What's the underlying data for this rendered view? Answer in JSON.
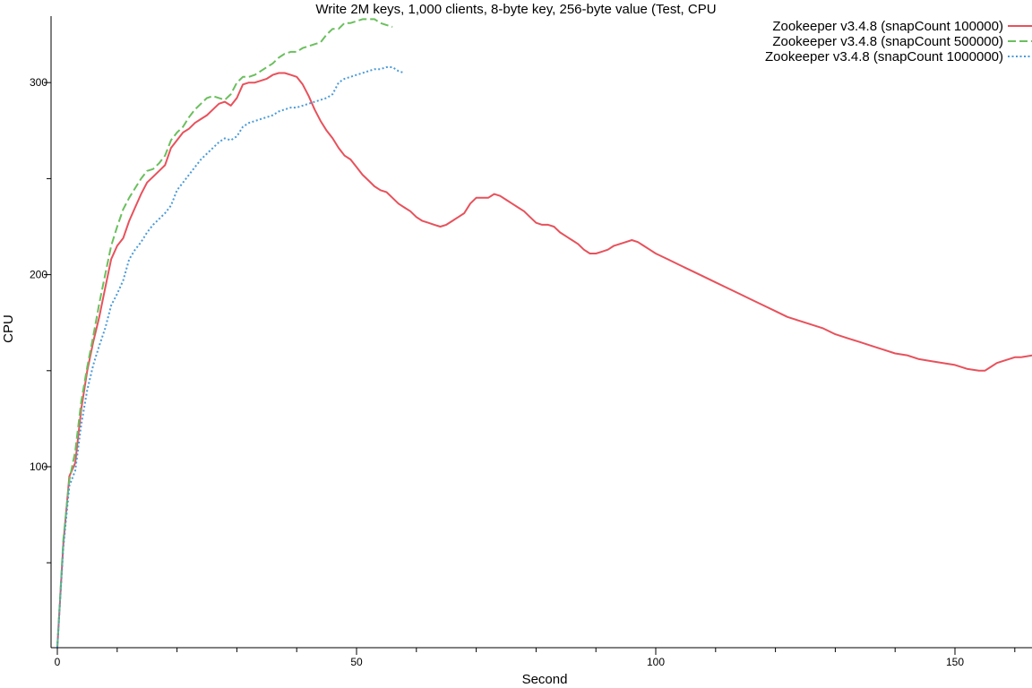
{
  "chart_data": {
    "type": "line",
    "title": "Write 2M keys, 1,000 clients, 8-byte key, 256-byte value (Test, CPU",
    "xlabel": "Second",
    "ylabel": "CPU",
    "xlim": [
      0,
      163
    ],
    "ylim": [
      3,
      330
    ],
    "x_ticks": [
      0,
      50,
      100,
      150
    ],
    "y_ticks": [
      100,
      200,
      300
    ],
    "legend_position": "top-right",
    "grid": false,
    "series": [
      {
        "name": "Zookeeper v3.4.8 (snapCount 100000)",
        "color": "#e8515b",
        "dash": "solid",
        "points": [
          [
            0,
            6
          ],
          [
            1,
            60
          ],
          [
            2,
            95
          ],
          [
            3,
            102
          ],
          [
            4,
            130
          ],
          [
            5,
            150
          ],
          [
            6,
            165
          ],
          [
            7,
            178
          ],
          [
            8,
            193
          ],
          [
            9,
            208
          ],
          [
            10,
            215
          ],
          [
            11,
            219
          ],
          [
            12,
            228
          ],
          [
            13,
            235
          ],
          [
            14,
            242
          ],
          [
            15,
            248
          ],
          [
            16,
            251
          ],
          [
            17,
            254
          ],
          [
            18,
            257
          ],
          [
            19,
            266
          ],
          [
            20,
            270
          ],
          [
            21,
            274
          ],
          [
            22,
            276
          ],
          [
            23,
            279
          ],
          [
            24,
            281
          ],
          [
            25,
            283
          ],
          [
            26,
            286
          ],
          [
            27,
            289
          ],
          [
            28,
            290
          ],
          [
            29,
            288
          ],
          [
            30,
            292
          ],
          [
            31,
            299
          ],
          [
            32,
            300
          ],
          [
            33,
            300
          ],
          [
            34,
            301
          ],
          [
            35,
            302
          ],
          [
            36,
            304
          ],
          [
            37,
            305
          ],
          [
            38,
            305
          ],
          [
            39,
            304
          ],
          [
            40,
            303
          ],
          [
            41,
            299
          ],
          [
            42,
            293
          ],
          [
            43,
            286
          ],
          [
            44,
            280
          ],
          [
            45,
            275
          ],
          [
            46,
            271
          ],
          [
            47,
            266
          ],
          [
            48,
            262
          ],
          [
            49,
            260
          ],
          [
            50,
            256
          ],
          [
            51,
            252
          ],
          [
            52,
            249
          ],
          [
            53,
            246
          ],
          [
            54,
            244
          ],
          [
            55,
            243
          ],
          [
            56,
            240
          ],
          [
            57,
            237
          ],
          [
            58,
            235
          ],
          [
            59,
            233
          ],
          [
            60,
            230
          ],
          [
            61,
            228
          ],
          [
            62,
            227
          ],
          [
            63,
            226
          ],
          [
            64,
            225
          ],
          [
            65,
            226
          ],
          [
            66,
            228
          ],
          [
            67,
            230
          ],
          [
            68,
            232
          ],
          [
            69,
            237
          ],
          [
            70,
            240
          ],
          [
            71,
            240
          ],
          [
            72,
            240
          ],
          [
            73,
            242
          ],
          [
            74,
            241
          ],
          [
            75,
            239
          ],
          [
            76,
            237
          ],
          [
            77,
            235
          ],
          [
            78,
            233
          ],
          [
            79,
            230
          ],
          [
            80,
            227
          ],
          [
            81,
            226
          ],
          [
            82,
            226
          ],
          [
            83,
            225
          ],
          [
            84,
            222
          ],
          [
            85,
            220
          ],
          [
            86,
            218
          ],
          [
            87,
            216
          ],
          [
            88,
            213
          ],
          [
            89,
            211
          ],
          [
            90,
            211
          ],
          [
            91,
            212
          ],
          [
            92,
            213
          ],
          [
            93,
            215
          ],
          [
            94,
            216
          ],
          [
            95,
            217
          ],
          [
            96,
            218
          ],
          [
            97,
            217
          ],
          [
            98,
            215
          ],
          [
            99,
            213
          ],
          [
            100,
            211
          ],
          [
            102,
            208
          ],
          [
            104,
            205
          ],
          [
            106,
            202
          ],
          [
            108,
            199
          ],
          [
            110,
            196
          ],
          [
            112,
            193
          ],
          [
            114,
            190
          ],
          [
            116,
            187
          ],
          [
            118,
            184
          ],
          [
            120,
            181
          ],
          [
            122,
            178
          ],
          [
            124,
            176
          ],
          [
            126,
            174
          ],
          [
            128,
            172
          ],
          [
            130,
            169
          ],
          [
            132,
            167
          ],
          [
            134,
            165
          ],
          [
            136,
            163
          ],
          [
            138,
            161
          ],
          [
            140,
            159
          ],
          [
            142,
            158
          ],
          [
            144,
            156
          ],
          [
            146,
            155
          ],
          [
            148,
            154
          ],
          [
            150,
            153
          ],
          [
            152,
            151
          ],
          [
            154,
            150
          ],
          [
            155,
            150
          ],
          [
            156,
            152
          ],
          [
            157,
            154
          ],
          [
            158,
            155
          ],
          [
            159,
            156
          ],
          [
            160,
            157
          ],
          [
            161,
            157
          ],
          [
            163,
            158
          ]
        ]
      },
      {
        "name": "Zookeeper v3.4.8 (snapCount 500000)",
        "color": "#6bbf5e",
        "dash": "dashed",
        "points": [
          [
            0,
            6
          ],
          [
            1,
            62
          ],
          [
            2,
            93
          ],
          [
            3,
            108
          ],
          [
            4,
            134
          ],
          [
            5,
            152
          ],
          [
            6,
            168
          ],
          [
            7,
            185
          ],
          [
            8,
            200
          ],
          [
            9,
            215
          ],
          [
            10,
            225
          ],
          [
            11,
            234
          ],
          [
            12,
            240
          ],
          [
            13,
            245
          ],
          [
            14,
            250
          ],
          [
            15,
            254
          ],
          [
            16,
            255
          ],
          [
            17,
            258
          ],
          [
            18,
            262
          ],
          [
            19,
            270
          ],
          [
            20,
            274
          ],
          [
            21,
            277
          ],
          [
            22,
            282
          ],
          [
            23,
            286
          ],
          [
            24,
            289
          ],
          [
            25,
            292
          ],
          [
            26,
            293
          ],
          [
            27,
            292
          ],
          [
            28,
            291
          ],
          [
            29,
            294
          ],
          [
            30,
            300
          ],
          [
            31,
            303
          ],
          [
            32,
            303
          ],
          [
            33,
            304
          ],
          [
            34,
            306
          ],
          [
            35,
            308
          ],
          [
            36,
            310
          ],
          [
            37,
            313
          ],
          [
            38,
            315
          ],
          [
            39,
            316
          ],
          [
            40,
            316
          ],
          [
            41,
            318
          ],
          [
            42,
            319
          ],
          [
            43,
            320
          ],
          [
            44,
            321
          ],
          [
            45,
            325
          ],
          [
            46,
            328
          ],
          [
            47,
            328
          ],
          [
            48,
            331
          ],
          [
            49,
            331
          ],
          [
            50,
            332
          ],
          [
            51,
            333
          ],
          [
            52,
            333
          ],
          [
            53,
            333
          ],
          [
            54,
            331
          ],
          [
            55,
            330
          ],
          [
            56,
            329
          ]
        ]
      },
      {
        "name": "Zookeeper v3.4.8 (snapCount 1000000)",
        "color": "#4a9bd8",
        "dash": "dotted",
        "points": [
          [
            0,
            6
          ],
          [
            1,
            58
          ],
          [
            2,
            90
          ],
          [
            3,
            98
          ],
          [
            4,
            122
          ],
          [
            5,
            140
          ],
          [
            6,
            153
          ],
          [
            7,
            163
          ],
          [
            8,
            172
          ],
          [
            9,
            184
          ],
          [
            10,
            190
          ],
          [
            11,
            197
          ],
          [
            12,
            208
          ],
          [
            13,
            213
          ],
          [
            14,
            217
          ],
          [
            15,
            222
          ],
          [
            16,
            226
          ],
          [
            17,
            229
          ],
          [
            18,
            232
          ],
          [
            19,
            236
          ],
          [
            20,
            244
          ],
          [
            21,
            248
          ],
          [
            22,
            252
          ],
          [
            23,
            256
          ],
          [
            24,
            260
          ],
          [
            25,
            263
          ],
          [
            26,
            266
          ],
          [
            27,
            269
          ],
          [
            28,
            271
          ],
          [
            29,
            270
          ],
          [
            30,
            272
          ],
          [
            31,
            277
          ],
          [
            32,
            279
          ],
          [
            33,
            280
          ],
          [
            34,
            281
          ],
          [
            35,
            282
          ],
          [
            36,
            283
          ],
          [
            37,
            285
          ],
          [
            38,
            286
          ],
          [
            39,
            287
          ],
          [
            40,
            287
          ],
          [
            41,
            288
          ],
          [
            42,
            289
          ],
          [
            43,
            290
          ],
          [
            44,
            291
          ],
          [
            45,
            292
          ],
          [
            46,
            294
          ],
          [
            47,
            300
          ],
          [
            48,
            302
          ],
          [
            49,
            303
          ],
          [
            50,
            304
          ],
          [
            51,
            305
          ],
          [
            52,
            306
          ],
          [
            53,
            307
          ],
          [
            54,
            307
          ],
          [
            55,
            308
          ],
          [
            56,
            308
          ],
          [
            57,
            306
          ],
          [
            58,
            305
          ]
        ]
      }
    ]
  }
}
